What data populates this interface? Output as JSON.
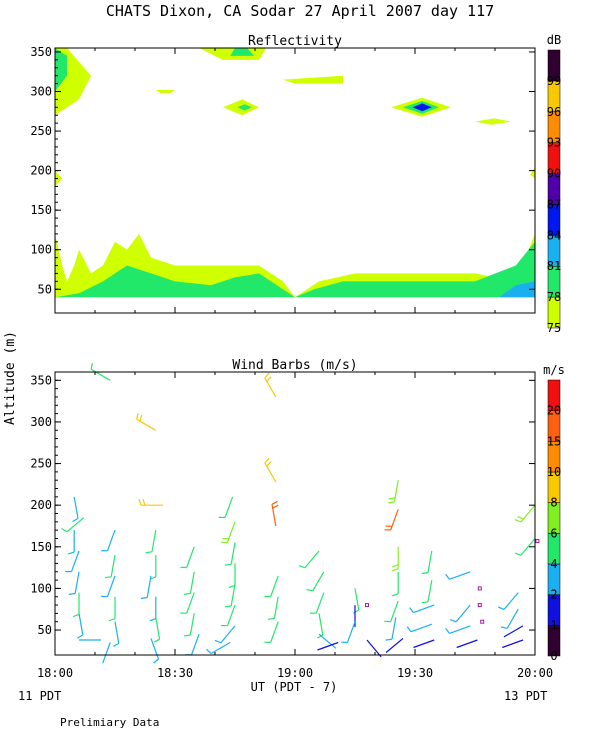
{
  "title": "CHATS Dixon, CA  Sodar  27 April 2007  day 117",
  "y_axis_label": "Altitude (m)",
  "x_axis_label": "UT  (PDT - 7)",
  "x_left_note": "11 PDT",
  "x_right_note": "13 PDT",
  "footer": "Prelimiary Data",
  "colors": {
    "c75": "#d0ff00",
    "c78": "#22e86a",
    "c81": "#1ab0f0",
    "c84": "#0018f0",
    "c87": "#5000a8",
    "c90": "#f01010",
    "c93": "#ff8c00",
    "c96": "#f8c800",
    "c99": "#300030"
  },
  "chart_data": [
    {
      "type": "heatmap",
      "title": "Reflectivity",
      "unit_label": "dB",
      "x_ticks": [
        "18:00",
        "18:30",
        "19:00",
        "19:30",
        "20:00"
      ],
      "y_ticks": [
        50,
        100,
        150,
        200,
        250,
        300,
        350
      ],
      "ylim": [
        20,
        355
      ],
      "xlim_hours": [
        18,
        20
      ],
      "colorbar": {
        "labels": [
          "75",
          "78",
          "81",
          "84",
          "87",
          "90",
          "93",
          "96",
          "99"
        ],
        "colors": [
          "#d0ff00",
          "#22e86a",
          "#1ab0f0",
          "#0018f0",
          "#5000a8",
          "#f01010",
          "#ff8c00",
          "#f8c800",
          "#300030"
        ]
      },
      "regions": [
        {
          "level": "75",
          "points": [
            [
              18.0,
              40
            ],
            [
              20.0,
              40
            ],
            [
              20.0,
              120
            ],
            [
              19.92,
              60
            ],
            [
              19.75,
              70
            ],
            [
              19.5,
              70
            ],
            [
              19.25,
              70
            ],
            [
              19.1,
              60
            ],
            [
              19.0,
              40
            ],
            [
              18.95,
              60
            ],
            [
              18.85,
              80
            ],
            [
              18.75,
              80
            ],
            [
              18.5,
              80
            ],
            [
              18.4,
              90
            ],
            [
              18.35,
              120
            ],
            [
              18.3,
              100
            ],
            [
              18.25,
              110
            ],
            [
              18.2,
              80
            ],
            [
              18.15,
              70
            ],
            [
              18.1,
              100
            ],
            [
              18.08,
              80
            ],
            [
              18.05,
              60
            ],
            [
              18.03,
              80
            ],
            [
              18.0,
              120
            ]
          ]
        },
        {
          "level": "78",
          "points": [
            [
              18.0,
              40
            ],
            [
              19.75,
              40
            ],
            [
              20.0,
              40
            ],
            [
              20.0,
              110
            ],
            [
              19.92,
              80
            ],
            [
              19.75,
              60
            ],
            [
              19.5,
              60
            ],
            [
              19.2,
              60
            ],
            [
              19.08,
              50
            ],
            [
              19.0,
              40
            ],
            [
              18.85,
              70
            ],
            [
              18.75,
              65
            ],
            [
              18.65,
              55
            ],
            [
              18.5,
              60
            ],
            [
              18.4,
              70
            ],
            [
              18.3,
              80
            ],
            [
              18.2,
              60
            ],
            [
              18.1,
              45
            ],
            [
              18.0,
              40
            ]
          ]
        },
        {
          "level": "81",
          "points": [
            [
              19.85,
              40
            ],
            [
              20.0,
              40
            ],
            [
              20.0,
              60
            ],
            [
              19.92,
              55
            ]
          ]
        },
        {
          "level": "75",
          "points": [
            [
              18.0,
              270
            ],
            [
              18.1,
              290
            ],
            [
              18.15,
              320
            ],
            [
              18.05,
              355
            ],
            [
              18.0,
              355
            ]
          ]
        },
        {
          "level": "78",
          "points": [
            [
              18.0,
              300
            ],
            [
              18.05,
              320
            ],
            [
              18.05,
              345
            ],
            [
              18.0,
              355
            ]
          ]
        },
        {
          "level": "75",
          "points": [
            [
              18.6,
              355
            ],
            [
              18.88,
              355
            ],
            [
              18.85,
              340
            ],
            [
              18.7,
              340
            ]
          ]
        },
        {
          "level": "78",
          "points": [
            [
              18.73,
              345
            ],
            [
              18.83,
              345
            ],
            [
              18.8,
              355
            ],
            [
              18.75,
              355
            ]
          ]
        },
        {
          "level": "75",
          "points": [
            [
              18.95,
              315
            ],
            [
              19.2,
              320
            ],
            [
              19.2,
              310
            ],
            [
              19.0,
              310
            ]
          ]
        },
        {
          "level": "75",
          "points": [
            [
              18.42,
              302
            ],
            [
              18.5,
              302
            ],
            [
              18.48,
              298
            ],
            [
              18.44,
              298
            ]
          ]
        },
        {
          "level": "75",
          "points": [
            [
              18.7,
              280
            ],
            [
              18.78,
              290
            ],
            [
              18.85,
              280
            ],
            [
              18.78,
              270
            ]
          ]
        },
        {
          "level": "78",
          "points": [
            [
              18.76,
              280
            ],
            [
              18.79,
              284
            ],
            [
              18.82,
              280
            ],
            [
              18.79,
              276
            ]
          ]
        },
        {
          "level": "75",
          "points": [
            [
              19.4,
              280
            ],
            [
              19.53,
              292
            ],
            [
              19.65,
              280
            ],
            [
              19.53,
              268
            ]
          ]
        },
        {
          "level": "78",
          "points": [
            [
              19.45,
              280
            ],
            [
              19.53,
              288
            ],
            [
              19.6,
              280
            ],
            [
              19.53,
              272
            ]
          ]
        },
        {
          "level": "84",
          "points": [
            [
              19.49,
              280
            ],
            [
              19.53,
              285
            ],
            [
              19.57,
              280
            ],
            [
              19.53,
              275
            ]
          ]
        },
        {
          "level": "75",
          "points": [
            [
              19.75,
              262
            ],
            [
              19.83,
              266
            ],
            [
              19.9,
              262
            ],
            [
              19.82,
              258
            ]
          ]
        },
        {
          "level": "75",
          "points": [
            [
              18.0,
              180
            ],
            [
              18.03,
              190
            ],
            [
              18.0,
              200
            ]
          ]
        },
        {
          "level": "75",
          "points": [
            [
              19.98,
              195
            ],
            [
              20.0,
              205
            ],
            [
              20.0,
              190
            ]
          ]
        }
      ]
    },
    {
      "type": "scatter",
      "title": "Wind Barbs (m/s)",
      "unit_label": "m/s",
      "x_ticks": [
        "18:00",
        "18:30",
        "19:00",
        "19:30",
        "20:00"
      ],
      "y_ticks": [
        50,
        100,
        150,
        200,
        250,
        300,
        350
      ],
      "ylim": [
        20,
        360
      ],
      "xlim_hours": [
        18,
        20
      ],
      "colorbar": {
        "labels": [
          "0",
          "1",
          "2",
          "4",
          "6",
          "8",
          "10",
          "15",
          "20"
        ],
        "colors": [
          "#300030",
          "#1010e0",
          "#1ab0f0",
          "#22e86a",
          "#80f020",
          "#f8c800",
          "#ff8c00",
          "#ff6010",
          "#f01010"
        ]
      },
      "barbs": [
        {
          "t": 18.08,
          "z": 210,
          "dir": 170,
          "s": 3
        },
        {
          "t": 18.12,
          "z": 185,
          "dir": 230,
          "s": 4
        },
        {
          "t": 18.08,
          "z": 170,
          "dir": 180,
          "s": 3
        },
        {
          "t": 18.1,
          "z": 145,
          "dir": 200,
          "s": 3
        },
        {
          "t": 18.1,
          "z": 120,
          "dir": 190,
          "s": 3
        },
        {
          "t": 18.1,
          "z": 95,
          "dir": 180,
          "s": 4
        },
        {
          "t": 18.1,
          "z": 70,
          "dir": 170,
          "s": 3
        },
        {
          "t": 18.1,
          "z": 38,
          "dir": 90,
          "s": 2
        },
        {
          "t": 18.23,
          "z": 350,
          "dir": 300,
          "s": 4
        },
        {
          "t": 18.25,
          "z": 170,
          "dir": 200,
          "s": 3
        },
        {
          "t": 18.25,
          "z": 140,
          "dir": 190,
          "s": 4
        },
        {
          "t": 18.25,
          "z": 115,
          "dir": 200,
          "s": 3
        },
        {
          "t": 18.25,
          "z": 90,
          "dir": 180,
          "s": 4
        },
        {
          "t": 18.25,
          "z": 60,
          "dir": 170,
          "s": 3
        },
        {
          "t": 18.23,
          "z": 35,
          "dir": 200,
          "s": 2
        },
        {
          "t": 18.42,
          "z": 290,
          "dir": 300,
          "s": 9
        },
        {
          "t": 18.45,
          "z": 200,
          "dir": 270,
          "s": 9
        },
        {
          "t": 18.42,
          "z": 170,
          "dir": 190,
          "s": 4
        },
        {
          "t": 18.42,
          "z": 140,
          "dir": 180,
          "s": 4
        },
        {
          "t": 18.4,
          "z": 115,
          "dir": 190,
          "s": 3
        },
        {
          "t": 18.42,
          "z": 90,
          "dir": 180,
          "s": 3
        },
        {
          "t": 18.42,
          "z": 65,
          "dir": 170,
          "s": 4
        },
        {
          "t": 18.4,
          "z": 40,
          "dir": 160,
          "s": 3
        },
        {
          "t": 18.58,
          "z": 150,
          "dir": 200,
          "s": 4
        },
        {
          "t": 18.58,
          "z": 120,
          "dir": 190,
          "s": 4
        },
        {
          "t": 18.58,
          "z": 95,
          "dir": 200,
          "s": 5
        },
        {
          "t": 18.58,
          "z": 70,
          "dir": 190,
          "s": 5
        },
        {
          "t": 18.6,
          "z": 45,
          "dir": 200,
          "s": 3
        },
        {
          "t": 18.74,
          "z": 210,
          "dir": 200,
          "s": 5
        },
        {
          "t": 18.75,
          "z": 180,
          "dir": 200,
          "s": 6
        },
        {
          "t": 18.75,
          "z": 155,
          "dir": 190,
          "s": 4
        },
        {
          "t": 18.75,
          "z": 130,
          "dir": 180,
          "s": 5
        },
        {
          "t": 18.75,
          "z": 105,
          "dir": 190,
          "s": 4
        },
        {
          "t": 18.75,
          "z": 80,
          "dir": 200,
          "s": 4
        },
        {
          "t": 18.75,
          "z": 55,
          "dir": 220,
          "s": 3
        },
        {
          "t": 18.73,
          "z": 35,
          "dir": 240,
          "s": 3
        },
        {
          "t": 18.92,
          "z": 330,
          "dir": 330,
          "s": 9
        },
        {
          "t": 18.92,
          "z": 228,
          "dir": 330,
          "s": 9
        },
        {
          "t": 18.92,
          "z": 175,
          "dir": 350,
          "s": 16
        },
        {
          "t": 18.93,
          "z": 115,
          "dir": 200,
          "s": 4
        },
        {
          "t": 18.93,
          "z": 90,
          "dir": 190,
          "s": 4
        },
        {
          "t": 18.93,
          "z": 60,
          "dir": 200,
          "s": 4
        },
        {
          "t": 19.1,
          "z": 145,
          "dir": 220,
          "s": 5
        },
        {
          "t": 19.12,
          "z": 120,
          "dir": 210,
          "s": 4
        },
        {
          "t": 19.12,
          "z": 95,
          "dir": 200,
          "s": 4
        },
        {
          "t": 19.1,
          "z": 70,
          "dir": 170,
          "s": 4
        },
        {
          "t": 19.1,
          "z": 45,
          "dir": 130,
          "s": 2
        },
        {
          "t": 19.18,
          "z": 35,
          "dir": 250,
          "s": 1
        },
        {
          "t": 19.25,
          "z": 100,
          "dir": 170,
          "s": 4
        },
        {
          "t": 19.25,
          "z": 80,
          "dir": 180,
          "s": 1
        },
        {
          "t": 19.25,
          "z": 60,
          "dir": 200,
          "s": 3
        },
        {
          "t": 19.3,
          "z": 38,
          "dir": 140,
          "s": 1
        },
        {
          "t": 19.43,
          "z": 230,
          "dir": 190,
          "s": 6
        },
        {
          "t": 19.43,
          "z": 195,
          "dir": 200,
          "s": 15
        },
        {
          "t": 19.43,
          "z": 150,
          "dir": 180,
          "s": 6
        },
        {
          "t": 19.43,
          "z": 120,
          "dir": 180,
          "s": 5
        },
        {
          "t": 19.43,
          "z": 85,
          "dir": 200,
          "s": 5
        },
        {
          "t": 19.42,
          "z": 65,
          "dir": 190,
          "s": 3
        },
        {
          "t": 19.45,
          "z": 40,
          "dir": 230,
          "s": 1
        },
        {
          "t": 19.57,
          "z": 145,
          "dir": 190,
          "s": 4
        },
        {
          "t": 19.57,
          "z": 110,
          "dir": 190,
          "s": 4
        },
        {
          "t": 19.58,
          "z": 80,
          "dir": 250,
          "s": 3
        },
        {
          "t": 19.57,
          "z": 57,
          "dir": 250,
          "s": 3
        },
        {
          "t": 19.58,
          "z": 38,
          "dir": 250,
          "s": 1
        },
        {
          "t": 19.73,
          "z": 120,
          "dir": 250,
          "s": 3
        },
        {
          "t": 19.73,
          "z": 80,
          "dir": 220,
          "s": 3
        },
        {
          "t": 19.73,
          "z": 55,
          "dir": 250,
          "s": 3
        },
        {
          "t": 19.76,
          "z": 38,
          "dir": 250,
          "s": 1
        },
        {
          "t": 19.93,
          "z": 95,
          "dir": 220,
          "s": 3
        },
        {
          "t": 19.93,
          "z": 75,
          "dir": 210,
          "s": 3
        },
        {
          "t": 19.95,
          "z": 55,
          "dir": 240,
          "s": 1
        },
        {
          "t": 19.95,
          "z": 38,
          "dir": 250,
          "s": 1
        },
        {
          "t": 20.0,
          "z": 200,
          "dir": 220,
          "s": 6
        },
        {
          "t": 20.0,
          "z": 160,
          "dir": 220,
          "s": 4
        }
      ],
      "calm_markers": [
        {
          "t": 19.3,
          "z": 80
        },
        {
          "t": 19.77,
          "z": 100
        },
        {
          "t": 19.77,
          "z": 80
        },
        {
          "t": 19.78,
          "z": 60
        },
        {
          "t": 20.01,
          "z": 157
        }
      ]
    }
  ]
}
